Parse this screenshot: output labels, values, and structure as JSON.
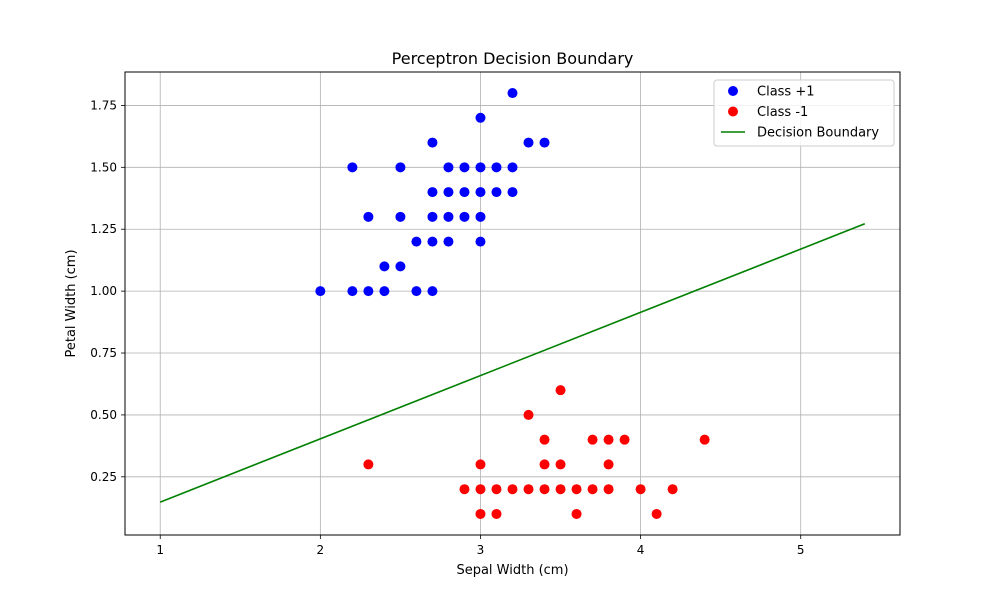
{
  "chart_data": {
    "type": "scatter",
    "title": "Perceptron Decision Boundary",
    "xlabel": "Sepal Width (cm)",
    "ylabel": "Petal Width (cm)",
    "xlim": [
      0.78,
      5.62
    ],
    "ylim": [
      0.015,
      1.885
    ],
    "xticks": [
      1,
      2,
      3,
      4,
      5
    ],
    "xtick_labels": [
      "1",
      "2",
      "3",
      "4",
      "5"
    ],
    "yticks": [
      0.25,
      0.5,
      0.75,
      1.0,
      1.25,
      1.5,
      1.75
    ],
    "ytick_labels": [
      "0.25",
      "0.50",
      "0.75",
      "1.00",
      "1.25",
      "1.50",
      "1.75"
    ],
    "grid": true,
    "legend_position": "top-right",
    "series": [
      {
        "name": "Class +1",
        "color": "#0000ff",
        "marker": "circle",
        "points": [
          [
            3.2,
            1.8
          ],
          [
            3.0,
            1.7
          ],
          [
            2.7,
            1.6
          ],
          [
            3.3,
            1.6
          ],
          [
            3.4,
            1.6
          ],
          [
            2.2,
            1.5
          ],
          [
            2.5,
            1.5
          ],
          [
            2.8,
            1.5
          ],
          [
            2.9,
            1.5
          ],
          [
            3.0,
            1.5
          ],
          [
            3.1,
            1.5
          ],
          [
            3.2,
            1.5
          ],
          [
            2.7,
            1.4
          ],
          [
            2.8,
            1.4
          ],
          [
            2.9,
            1.4
          ],
          [
            3.0,
            1.4
          ],
          [
            3.1,
            1.4
          ],
          [
            3.2,
            1.4
          ],
          [
            2.3,
            1.3
          ],
          [
            2.5,
            1.3
          ],
          [
            2.7,
            1.3
          ],
          [
            2.8,
            1.3
          ],
          [
            2.9,
            1.3
          ],
          [
            3.0,
            1.3
          ],
          [
            2.6,
            1.2
          ],
          [
            2.7,
            1.2
          ],
          [
            2.8,
            1.2
          ],
          [
            3.0,
            1.2
          ],
          [
            2.4,
            1.1
          ],
          [
            2.5,
            1.1
          ],
          [
            2.0,
            1.0
          ],
          [
            2.2,
            1.0
          ],
          [
            2.3,
            1.0
          ],
          [
            2.4,
            1.0
          ],
          [
            2.6,
            1.0
          ],
          [
            2.7,
            1.0
          ]
        ]
      },
      {
        "name": "Class -1",
        "color": "#ff0000",
        "marker": "circle",
        "points": [
          [
            3.5,
            0.6
          ],
          [
            3.3,
            0.5
          ],
          [
            3.4,
            0.4
          ],
          [
            3.7,
            0.4
          ],
          [
            3.8,
            0.4
          ],
          [
            3.9,
            0.4
          ],
          [
            4.4,
            0.4
          ],
          [
            2.3,
            0.3
          ],
          [
            3.0,
            0.3
          ],
          [
            3.4,
            0.3
          ],
          [
            3.5,
            0.3
          ],
          [
            3.8,
            0.3
          ],
          [
            2.9,
            0.2
          ],
          [
            3.0,
            0.2
          ],
          [
            3.1,
            0.2
          ],
          [
            3.2,
            0.2
          ],
          [
            3.3,
            0.2
          ],
          [
            3.4,
            0.2
          ],
          [
            3.5,
            0.2
          ],
          [
            3.6,
            0.2
          ],
          [
            3.7,
            0.2
          ],
          [
            3.8,
            0.2
          ],
          [
            4.0,
            0.2
          ],
          [
            4.2,
            0.2
          ],
          [
            3.0,
            0.1
          ],
          [
            3.1,
            0.1
          ],
          [
            3.6,
            0.1
          ],
          [
            4.1,
            0.1
          ]
        ]
      },
      {
        "name": "Decision Boundary",
        "color": "#008000",
        "type": "line",
        "points": [
          [
            1.0,
            0.148
          ],
          [
            5.4,
            1.272
          ]
        ]
      }
    ]
  }
}
